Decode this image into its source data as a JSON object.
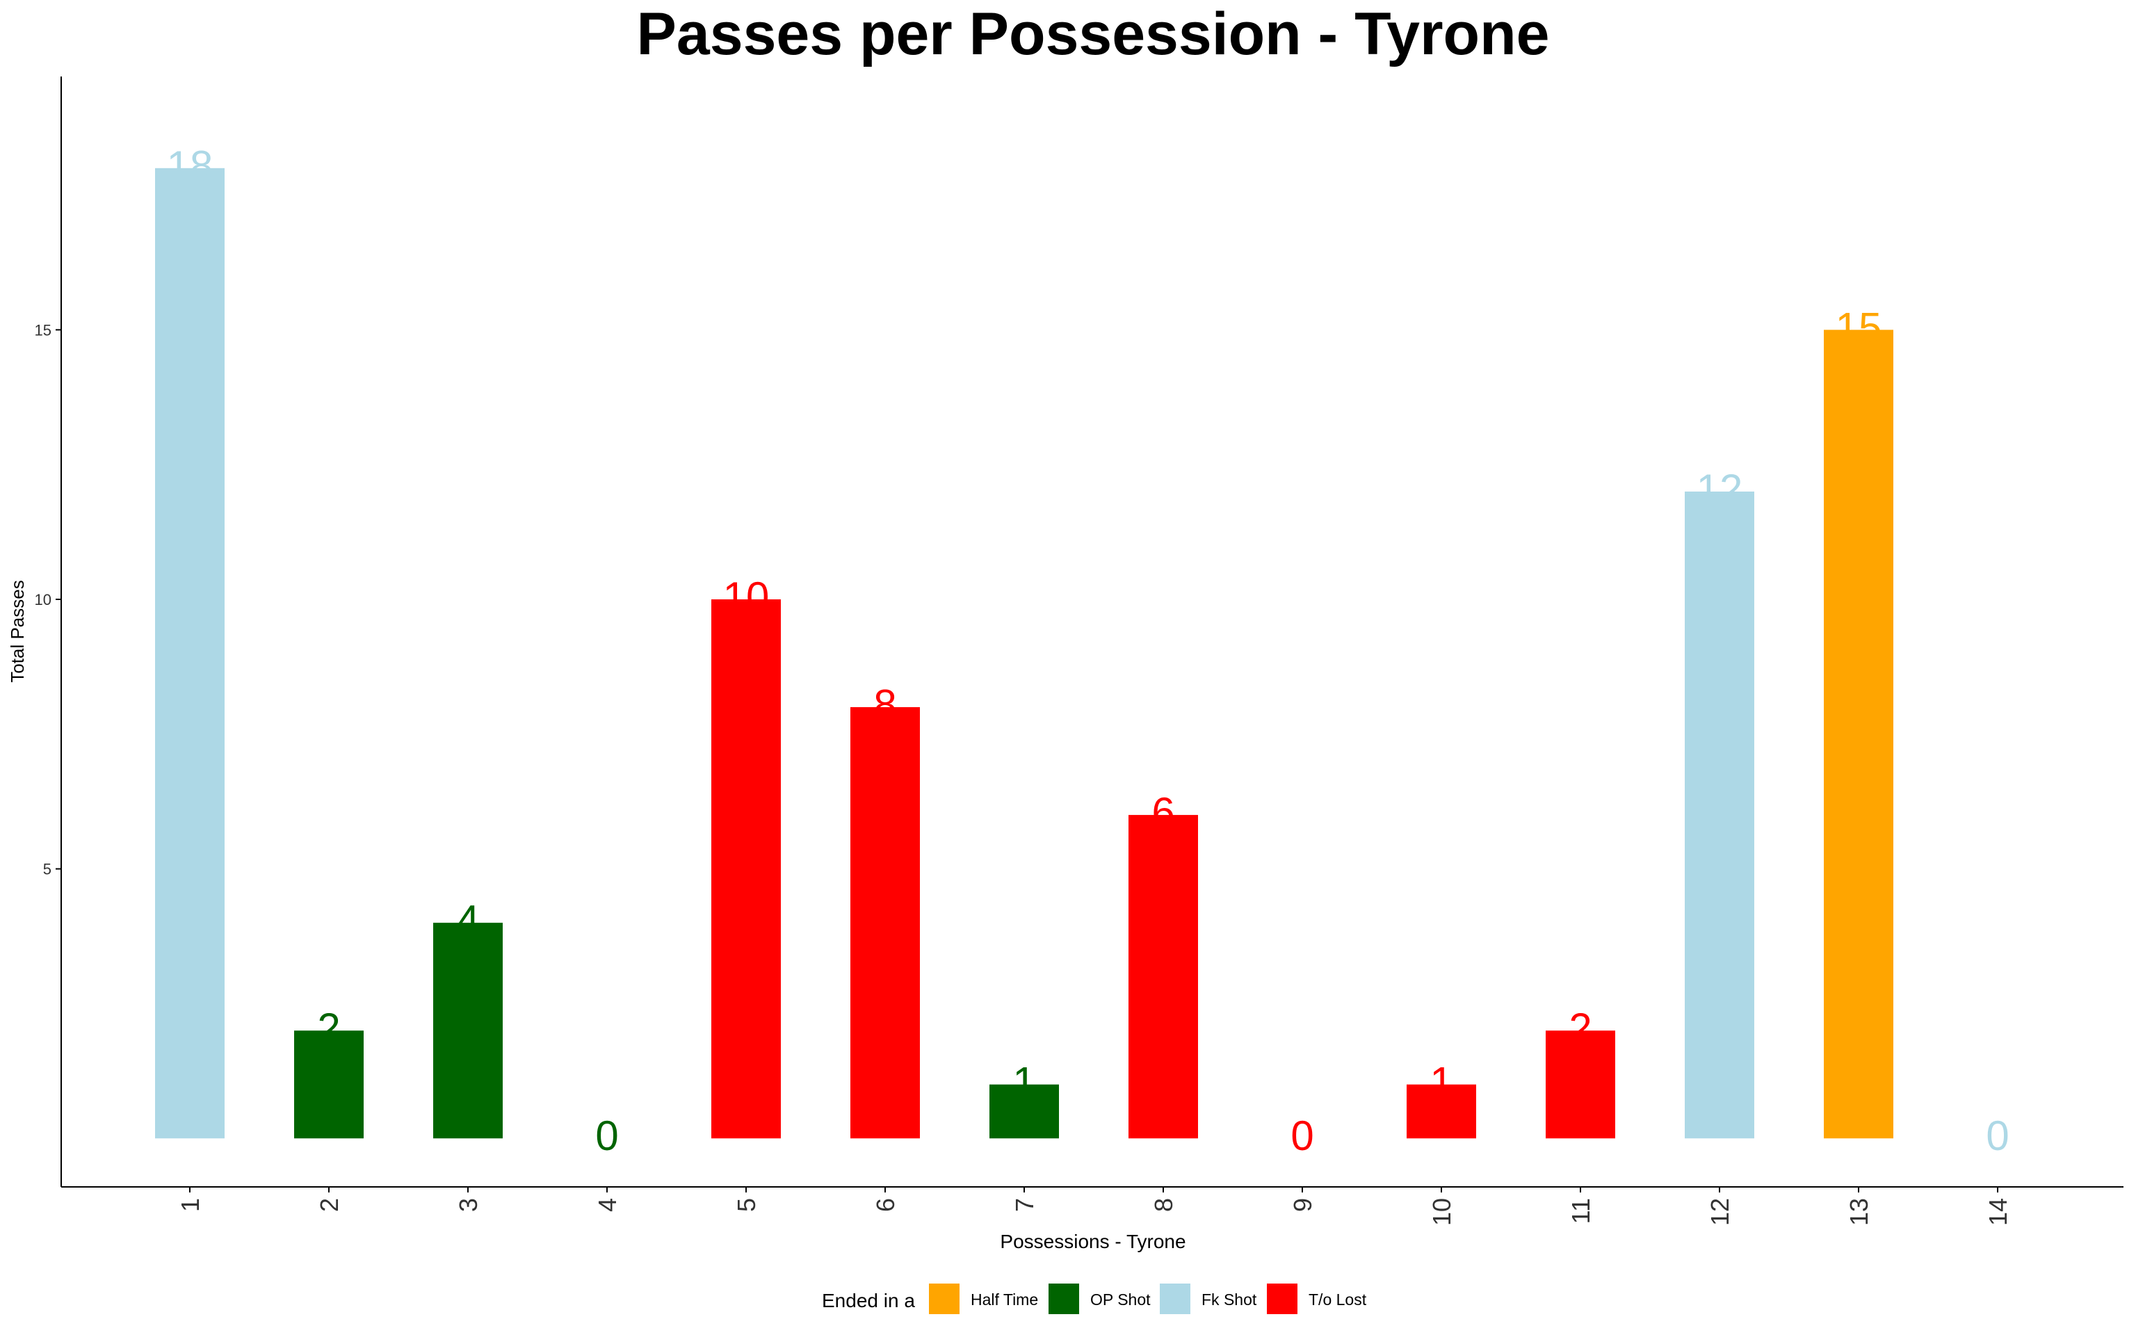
{
  "chart_data": {
    "type": "bar",
    "title": "Passes per Possession - Tyrone",
    "xlabel": "Possessions - Tyrone",
    "ylabel": "Total Passes",
    "categories": [
      "1",
      "2",
      "3",
      "4",
      "5",
      "6",
      "7",
      "8",
      "9",
      "10",
      "11",
      "12",
      "13",
      "14"
    ],
    "values": [
      18,
      2,
      4,
      0,
      10,
      8,
      1,
      6,
      0,
      1,
      2,
      12,
      15,
      0
    ],
    "bar_categories": [
      "Fk Shot",
      "OP Shot",
      "OP Shot",
      "OP Shot",
      "T/o Lost",
      "T/o Lost",
      "OP Shot",
      "T/o Lost",
      "T/o Lost",
      "T/o Lost",
      "T/o Lost",
      "Fk Shot",
      "Half Time",
      "Fk Shot"
    ],
    "yticks": [
      5,
      10,
      15
    ],
    "ylim": [
      -0.9,
      19.7
    ],
    "grid": false,
    "legend": {
      "title": "Ended in a",
      "position": "bottom",
      "items": [
        {
          "label": "Half Time",
          "color": "#FFA500"
        },
        {
          "label": "OP Shot",
          "color": "#006400"
        },
        {
          "label": "Fk Shot",
          "color": "#ADD8E6"
        },
        {
          "label": "T/o Lost",
          "color": "#FF0000"
        }
      ]
    }
  }
}
